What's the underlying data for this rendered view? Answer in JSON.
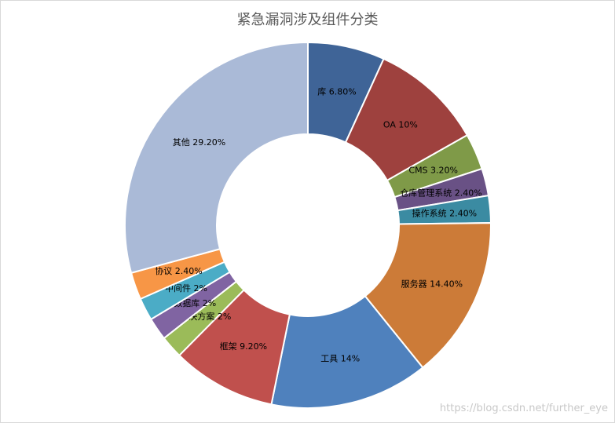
{
  "chart_data": {
    "type": "pie",
    "donut": true,
    "title": "紧急漏洞涉及组件分类",
    "legend": "none",
    "slices": [
      {
        "label": "库",
        "value": 6.8,
        "display": "库  6.80%",
        "color": "#3f6497"
      },
      {
        "label": "OA",
        "value": 10.0,
        "display": "OA  10%",
        "color": "#9e413e"
      },
      {
        "label": "CMS",
        "value": 3.2,
        "display": "CMS  3.20%",
        "color": "#7f9a48"
      },
      {
        "label": "仓库管理系统",
        "value": 2.4,
        "display": "仓库管理系统  2.40%",
        "color": "#695185"
      },
      {
        "label": "操作系统",
        "value": 2.4,
        "display": "操作系统  2.40%",
        "color": "#3b8ba2"
      },
      {
        "label": "服务器",
        "value": 14.4,
        "display": "服务器  14.40%",
        "color": "#cc7b38"
      },
      {
        "label": "工具",
        "value": 14.0,
        "display": "工具  14%",
        "color": "#4f81bd"
      },
      {
        "label": "框架",
        "value": 9.2,
        "display": "框架  9.20%",
        "color": "#c0504d"
      },
      {
        "label": "解决方案",
        "value": 2.0,
        "display": "解决方案  2%",
        "color": "#9bbb59"
      },
      {
        "label": "数据库",
        "value": 2.0,
        "display": "数据库  2%",
        "color": "#8064a2"
      },
      {
        "label": "中间件",
        "value": 2.0,
        "display": "中间件  2%",
        "color": "#4bacc6"
      },
      {
        "label": "协议",
        "value": 2.4,
        "display": "协议  2.40%",
        "color": "#f79646"
      },
      {
        "label": "其他",
        "value": 29.2,
        "display": "其他  29.20%",
        "color": "#aabad7"
      }
    ]
  },
  "watermark": "https://blog.csdn.net/further_eye"
}
